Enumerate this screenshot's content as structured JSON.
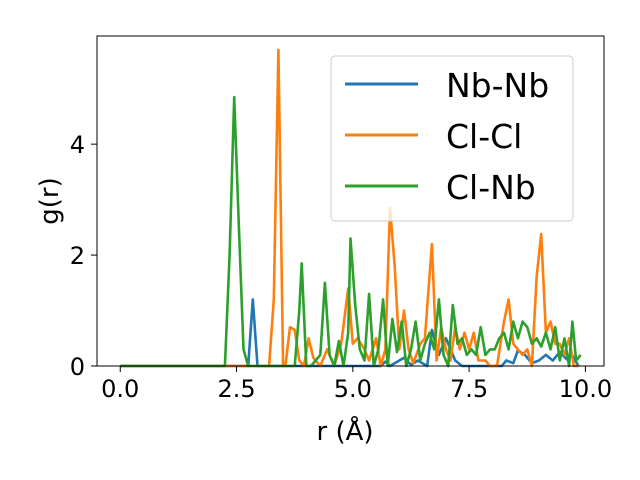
{
  "chart_data": {
    "type": "line",
    "xlabel": "r (Å)",
    "ylabel": "g(r)",
    "xlim": [
      -0.5,
      10.4
    ],
    "ylim": [
      0,
      5.95
    ],
    "xticks": [
      0.0,
      2.5,
      5.0,
      7.5,
      10.0
    ],
    "xtick_labels": [
      "0.0",
      "2.5",
      "5.0",
      "7.5",
      "10.0"
    ],
    "yticks": [
      0,
      2,
      4
    ],
    "ytick_labels": [
      "0",
      "2",
      "4"
    ],
    "grid": false,
    "legend_position": "top-right",
    "series": [
      {
        "name": "Nb-Nb",
        "color": "#1f77b4",
        "points": [
          [
            0,
            0
          ],
          [
            2.65,
            0
          ],
          [
            2.75,
            0
          ],
          [
            2.85,
            1.2
          ],
          [
            2.95,
            0
          ],
          [
            3.1,
            0
          ],
          [
            4.5,
            0
          ],
          [
            5.6,
            0
          ],
          [
            5.7,
            0.08
          ],
          [
            5.8,
            0
          ],
          [
            6.0,
            0.1
          ],
          [
            6.1,
            0.15
          ],
          [
            6.25,
            0.02
          ],
          [
            6.4,
            0.1
          ],
          [
            6.6,
            0
          ],
          [
            6.7,
            0.65
          ],
          [
            6.85,
            0.2
          ],
          [
            7.0,
            0.5
          ],
          [
            7.2,
            0.1
          ],
          [
            7.35,
            0
          ],
          [
            8.2,
            0
          ],
          [
            8.3,
            0.1
          ],
          [
            8.45,
            0.05
          ],
          [
            8.55,
            0.28
          ],
          [
            8.7,
            0.2
          ],
          [
            8.85,
            0.05
          ],
          [
            9.0,
            0.1
          ],
          [
            9.15,
            0.2
          ],
          [
            9.3,
            0.1
          ],
          [
            9.45,
            0.25
          ],
          [
            9.6,
            0.12
          ],
          [
            9.7,
            0.22
          ],
          [
            9.85,
            0
          ]
        ]
      },
      {
        "name": "Cl-Cl",
        "color": "#ff7f0e",
        "points": [
          [
            0,
            0
          ],
          [
            3.2,
            0
          ],
          [
            3.3,
            1.2
          ],
          [
            3.4,
            5.7
          ],
          [
            3.5,
            0
          ],
          [
            3.55,
            0
          ],
          [
            3.65,
            0.7
          ],
          [
            3.75,
            0.65
          ],
          [
            3.85,
            0.1
          ],
          [
            3.95,
            0
          ],
          [
            4.05,
            0.5
          ],
          [
            4.15,
            0.15
          ],
          [
            4.3,
            0
          ],
          [
            4.45,
            0.3
          ],
          [
            4.6,
            0
          ],
          [
            4.75,
            0.4
          ],
          [
            4.9,
            1.4
          ],
          [
            5.0,
            0.4
          ],
          [
            5.1,
            0.5
          ],
          [
            5.25,
            0.3
          ],
          [
            5.35,
            0.1
          ],
          [
            5.5,
            0.5
          ],
          [
            5.6,
            0
          ],
          [
            5.7,
            0.3
          ],
          [
            5.8,
            2.85
          ],
          [
            5.9,
            1.8
          ],
          [
            6.0,
            0.3
          ],
          [
            6.1,
            1.0
          ],
          [
            6.2,
            0.3
          ],
          [
            6.3,
            0.05
          ],
          [
            6.45,
            0.4
          ],
          [
            6.55,
            0.5
          ],
          [
            6.7,
            2.2
          ],
          [
            6.8,
            0.1
          ],
          [
            6.9,
            0.7
          ],
          [
            7.0,
            0.3
          ],
          [
            7.1,
            0.1
          ],
          [
            7.2,
            0.7
          ],
          [
            7.3,
            0.3
          ],
          [
            7.4,
            0.6
          ],
          [
            7.5,
            0.3
          ],
          [
            7.6,
            0.6
          ],
          [
            7.7,
            0.1
          ],
          [
            7.85,
            0.1
          ],
          [
            7.95,
            0
          ],
          [
            8.1,
            0
          ],
          [
            8.25,
            0.8
          ],
          [
            8.35,
            1.2
          ],
          [
            8.45,
            0.4
          ],
          [
            8.55,
            0.3
          ],
          [
            8.65,
            0.2
          ],
          [
            8.75,
            0.3
          ],
          [
            8.85,
            0
          ],
          [
            8.95,
            1.6
          ],
          [
            9.05,
            2.38
          ],
          [
            9.15,
            0.6
          ],
          [
            9.25,
            0.8
          ],
          [
            9.35,
            0.4
          ],
          [
            9.45,
            0.4
          ],
          [
            9.55,
            0.2
          ],
          [
            9.65,
            0.5
          ],
          [
            9.75,
            0
          ],
          [
            9.85,
            0
          ]
        ]
      },
      {
        "name": "Cl-Nb",
        "color": "#2ca02c",
        "points": [
          [
            0,
            0
          ],
          [
            2.25,
            0
          ],
          [
            2.35,
            2.0
          ],
          [
            2.45,
            4.85
          ],
          [
            2.55,
            2.5
          ],
          [
            2.65,
            0.3
          ],
          [
            2.75,
            0
          ],
          [
            3.5,
            0
          ],
          [
            3.75,
            0
          ],
          [
            3.85,
            1.0
          ],
          [
            3.9,
            1.85
          ],
          [
            4.0,
            0
          ],
          [
            4.1,
            0
          ],
          [
            4.3,
            0.2
          ],
          [
            4.4,
            1.5
          ],
          [
            4.5,
            0.2
          ],
          [
            4.6,
            0
          ],
          [
            4.7,
            0.45
          ],
          [
            4.8,
            0
          ],
          [
            4.9,
            0.6
          ],
          [
            4.95,
            2.3
          ],
          [
            5.05,
            1.1
          ],
          [
            5.15,
            0.3
          ],
          [
            5.25,
            0.1
          ],
          [
            5.35,
            1.3
          ],
          [
            5.45,
            0
          ],
          [
            5.55,
            0.3
          ],
          [
            5.65,
            1.2
          ],
          [
            5.75,
            0
          ],
          [
            5.85,
            0.85
          ],
          [
            5.95,
            0.25
          ],
          [
            6.05,
            0.8
          ],
          [
            6.15,
            0
          ],
          [
            6.25,
            0.3
          ],
          [
            6.35,
            0.8
          ],
          [
            6.45,
            0.1
          ],
          [
            6.55,
            0.4
          ],
          [
            6.65,
            0.6
          ],
          [
            6.75,
            0.3
          ],
          [
            6.85,
            1.2
          ],
          [
            6.95,
            0.2
          ],
          [
            7.05,
            0
          ],
          [
            7.15,
            1.1
          ],
          [
            7.25,
            0.4
          ],
          [
            7.35,
            0.5
          ],
          [
            7.45,
            0.2
          ],
          [
            7.55,
            0.3
          ],
          [
            7.65,
            0.2
          ],
          [
            7.75,
            0.7
          ],
          [
            7.85,
            0.2
          ],
          [
            7.95,
            0.3
          ],
          [
            8.05,
            0.3
          ],
          [
            8.15,
            0.5
          ],
          [
            8.25,
            0.6
          ],
          [
            8.35,
            0.3
          ],
          [
            8.45,
            0.8
          ],
          [
            8.55,
            0.5
          ],
          [
            8.65,
            0.8
          ],
          [
            8.75,
            0.7
          ],
          [
            8.85,
            0.4
          ],
          [
            8.95,
            0.5
          ],
          [
            9.05,
            0.35
          ],
          [
            9.15,
            0.6
          ],
          [
            9.25,
            0.3
          ],
          [
            9.35,
            0.7
          ],
          [
            9.45,
            0.1
          ],
          [
            9.55,
            0.5
          ],
          [
            9.65,
            0
          ],
          [
            9.72,
            0.8
          ],
          [
            9.8,
            0.1
          ],
          [
            9.9,
            0.2
          ]
        ]
      }
    ]
  }
}
